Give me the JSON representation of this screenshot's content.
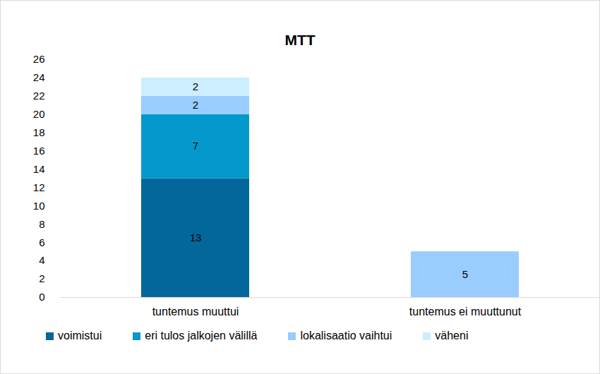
{
  "chart_data": {
    "type": "bar",
    "title": "MTT",
    "categories": [
      "tuntemus muuttui",
      "tuntemus ei muuttunut"
    ],
    "series": [
      {
        "name": "voimistui",
        "color": "#03679b",
        "values": [
          13,
          0
        ]
      },
      {
        "name": "eri tulos jalkojen välillä",
        "color": "#0399cc",
        "values": [
          7,
          0
        ]
      },
      {
        "name": "lokalisaatio vaihtui",
        "color": "#99ccff",
        "values": [
          2,
          5
        ]
      },
      {
        "name": "väheni",
        "color": "#cceeff",
        "values": [
          2,
          0
        ]
      }
    ],
    "stacked": true,
    "data_labels": true,
    "grid": false,
    "legend": "bottom",
    "ylim": [
      0,
      26
    ],
    "yticks": [
      0,
      2,
      4,
      6,
      8,
      10,
      12,
      14,
      16,
      18,
      20,
      22,
      24,
      26
    ]
  }
}
